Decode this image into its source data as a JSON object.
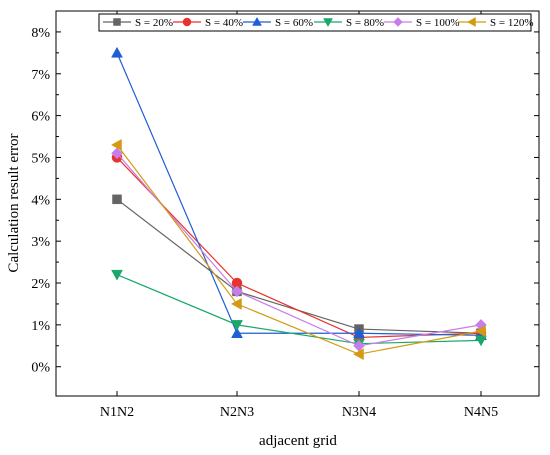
{
  "chart_data": {
    "type": "line",
    "title": "",
    "xlabel": "adjacent grid",
    "ylabel": "Calculation result error",
    "categories": [
      "N1N2",
      "N2N3",
      "N3N4",
      "N4N5"
    ],
    "ylim": [
      -0.007,
      0.085
    ],
    "yticks": [
      0,
      0.01,
      0.02,
      0.03,
      0.04,
      0.05,
      0.06,
      0.07,
      0.08
    ],
    "ytick_labels": [
      "0%",
      "1%",
      "2%",
      "3%",
      "4%",
      "5%",
      "6%",
      "7%",
      "8%"
    ],
    "grid": false,
    "legend_position": "top",
    "series": [
      {
        "name": "S = 20%",
        "color": "#646464",
        "marker": "square",
        "values": [
          0.04,
          0.018,
          0.009,
          0.008
        ]
      },
      {
        "name": "S = 40%",
        "color": "#e8322e",
        "marker": "circle",
        "values": [
          0.05,
          0.02,
          0.007,
          0.008
        ]
      },
      {
        "name": "S = 60%",
        "color": "#1e5fd6",
        "marker": "triangle-up",
        "values": [
          0.075,
          0.008,
          0.008,
          0.0075
        ]
      },
      {
        "name": "S = 80%",
        "color": "#1aa86a",
        "marker": "triangle-down",
        "values": [
          0.022,
          0.01,
          0.0055,
          0.0063
        ]
      },
      {
        "name": "S = 100%",
        "color": "#c77ee8",
        "marker": "diamond",
        "values": [
          0.051,
          0.018,
          0.005,
          0.01
        ]
      },
      {
        "name": "S = 120%",
        "color": "#d49a13",
        "marker": "triangle-left",
        "values": [
          0.053,
          0.015,
          0.003,
          0.0085
        ]
      }
    ]
  }
}
